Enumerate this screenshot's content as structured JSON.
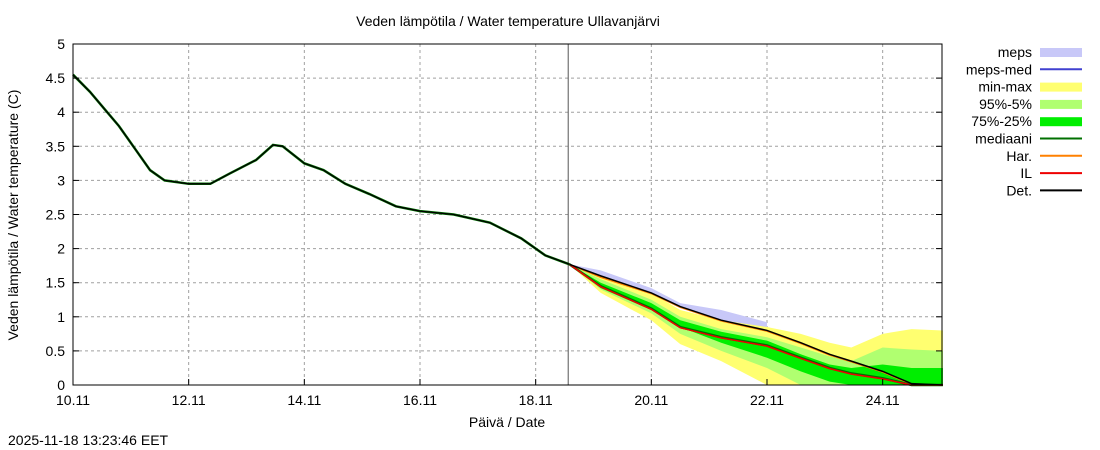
{
  "chart_data": {
    "type": "area",
    "title": "Veden lämpötila / Water temperature Ullavanjärvi",
    "xlabel": "Päivä / Date",
    "ylabel": "Veden lämpötila / Water temperature (C)",
    "xlim": [
      "2025-11-10T00:00",
      "2025-11-25T01:00"
    ],
    "ylim": [
      0,
      5
    ],
    "grid": true,
    "legend_position": "right",
    "x_ticks": [
      {
        "date": "2025-11-10T00:00",
        "label": "10.11"
      },
      {
        "date": "2025-11-12T00:00",
        "label": "12.11"
      },
      {
        "date": "2025-11-14T00:00",
        "label": "14.11"
      },
      {
        "date": "2025-11-16T00:00",
        "label": "16.11"
      },
      {
        "date": "2025-11-18T00:00",
        "label": "18.11"
      },
      {
        "date": "2025-11-20T00:00",
        "label": "20.11"
      },
      {
        "date": "2025-11-22T00:00",
        "label": "22.11"
      },
      {
        "date": "2025-11-24T00:00",
        "label": "24.11"
      }
    ],
    "y_ticks": [
      {
        "value": 0,
        "label": "0"
      },
      {
        "value": 0.5,
        "label": "0.5"
      },
      {
        "value": 1,
        "label": "1"
      },
      {
        "value": 1.5,
        "label": "1.5"
      },
      {
        "value": 2,
        "label": "2"
      },
      {
        "value": 2.5,
        "label": "2.5"
      },
      {
        "value": 3,
        "label": "3"
      },
      {
        "value": 3.5,
        "label": "3.5"
      },
      {
        "value": 4,
        "label": "4"
      },
      {
        "value": 4.5,
        "label": "4.5"
      },
      {
        "value": 5,
        "label": "5"
      }
    ],
    "forecast_start": "2025-11-18T13:30",
    "legend": [
      {
        "key": "meps",
        "label": "meps",
        "color": "#c8c8f8",
        "kind": "band"
      },
      {
        "key": "meps_med",
        "label": "meps-med",
        "color": "#4040d0",
        "kind": "line"
      },
      {
        "key": "minmax",
        "label": "min-max",
        "color": "#ffff70",
        "kind": "band"
      },
      {
        "key": "p95_5",
        "label": "95%-5%",
        "color": "#b0ff70",
        "kind": "band"
      },
      {
        "key": "p75_25",
        "label": "75%-25%",
        "color": "#00ee00",
        "kind": "band"
      },
      {
        "key": "median",
        "label": "mediaani",
        "color": "#007000",
        "kind": "line"
      },
      {
        "key": "har",
        "label": "Har.",
        "color": "#ff8000",
        "kind": "line"
      },
      {
        "key": "il",
        "label": "IL",
        "color": "#ee0000",
        "kind": "line"
      },
      {
        "key": "det",
        "label": "Det.",
        "color": "#000000",
        "kind": "line"
      }
    ],
    "observed": {
      "x": [
        "2025-11-10T00:00",
        "2025-11-10T07:00",
        "2025-11-10T13:00",
        "2025-11-10T19:00",
        "2025-11-11T02:00",
        "2025-11-11T08:00",
        "2025-11-11T14:00",
        "2025-11-12T00:00",
        "2025-11-12T09:00",
        "2025-11-12T17:00",
        "2025-11-13T04:00",
        "2025-11-13T11:00",
        "2025-11-13T15:00",
        "2025-11-14T00:00",
        "2025-11-14T08:00",
        "2025-11-14T17:00",
        "2025-11-15T03:00",
        "2025-11-15T14:00",
        "2025-11-16T00:00",
        "2025-11-16T14:00",
        "2025-11-17T05:00",
        "2025-11-17T18:00",
        "2025-11-18T04:00",
        "2025-11-18T14:00"
      ],
      "y": [
        4.55,
        4.3,
        4.05,
        3.8,
        3.45,
        3.15,
        3.0,
        2.95,
        2.95,
        3.1,
        3.3,
        3.52,
        3.5,
        3.25,
        3.15,
        2.95,
        2.8,
        2.62,
        2.55,
        2.5,
        2.38,
        2.15,
        1.9,
        1.77
      ]
    },
    "forecast": {
      "x": [
        "2025-11-18T14:00",
        "2025-11-19T03:00",
        "2025-11-20T00:00",
        "2025-11-20T12:00",
        "2025-11-21T05:00",
        "2025-11-22T00:00",
        "2025-11-22T14:00",
        "2025-11-23T02:00",
        "2025-11-23T11:00",
        "2025-11-24T00:00",
        "2025-11-24T12:00",
        "2025-11-25T01:00"
      ],
      "minmax_hi": [
        1.77,
        1.6,
        1.35,
        1.1,
        0.95,
        0.85,
        0.75,
        0.62,
        0.55,
        0.75,
        0.82,
        0.8
      ],
      "minmax_lo": [
        1.77,
        1.35,
        0.95,
        0.6,
        0.35,
        0,
        0,
        0,
        0,
        0,
        0,
        0
      ],
      "p95": [
        1.77,
        1.55,
        1.25,
        1.0,
        0.82,
        0.7,
        0.55,
        0.42,
        0.35,
        0.55,
        0.52,
        0.5
      ],
      "p5": [
        1.77,
        1.4,
        1.05,
        0.75,
        0.5,
        0.25,
        0,
        0,
        0,
        0,
        0,
        0
      ],
      "p75": [
        1.77,
        1.5,
        1.2,
        0.95,
        0.78,
        0.65,
        0.45,
        0.3,
        0.25,
        0.3,
        0.25,
        0.25
      ],
      "p25": [
        1.77,
        1.42,
        1.1,
        0.85,
        0.62,
        0.4,
        0.2,
        0.05,
        0,
        0,
        0,
        0
      ],
      "median": [
        1.77,
        1.45,
        1.12,
        0.85,
        0.7,
        0.58,
        0.4,
        0.25,
        0.17,
        0.1,
        0,
        0
      ],
      "il": [
        1.77,
        1.44,
        1.11,
        0.84,
        0.69,
        0.57,
        0.39,
        0.24,
        0.16,
        0.09,
        0,
        0
      ],
      "det": [
        1.77,
        1.6,
        1.35,
        1.15,
        0.95,
        0.8,
        0.62,
        0.45,
        0.35,
        0.2,
        0.02,
        0
      ],
      "har": [
        1.77,
        1.58,
        1.34,
        1.14,
        0.94,
        0.79,
        0.61,
        0.44,
        0.34,
        0.19,
        0.01,
        0
      ]
    },
    "meps": {
      "x": [
        "2025-11-18T14:00",
        "2025-11-19T03:00",
        "2025-11-20T00:00",
        "2025-11-20T12:00",
        "2025-11-21T05:00",
        "2025-11-22T00:00"
      ],
      "hi": [
        1.77,
        1.68,
        1.42,
        1.2,
        1.1,
        0.92
      ],
      "lo": [
        1.77,
        1.6,
        1.35,
        1.15,
        0.95,
        0.8
      ]
    }
  },
  "footer": {
    "timestamp": "2025-11-18 13:23:46 EET"
  }
}
